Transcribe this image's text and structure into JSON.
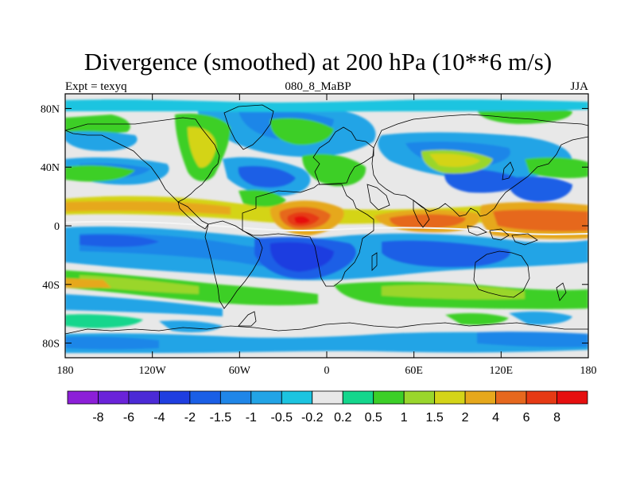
{
  "title": "Divergence (smoothed) at 200 hPa (10**6 m/s)",
  "subtitle_left": "Expt = texyq",
  "subtitle_center": "080_8_MaBP",
  "subtitle_right": "JJA",
  "map": {
    "lon_range": [
      -180,
      180
    ],
    "lat_range": [
      -90,
      90
    ],
    "x_ticks": [
      {
        "value": -180,
        "label": "180"
      },
      {
        "value": -120,
        "label": "120W"
      },
      {
        "value": -60,
        "label": "60W"
      },
      {
        "value": 0,
        "label": "0"
      },
      {
        "value": 60,
        "label": "60E"
      },
      {
        "value": 120,
        "label": "120E"
      },
      {
        "value": 180,
        "label": "180"
      }
    ],
    "y_ticks": [
      {
        "value": 80,
        "label": "80N"
      },
      {
        "value": 40,
        "label": "40N"
      },
      {
        "value": 0,
        "label": "0"
      },
      {
        "value": -40,
        "label": "40S"
      },
      {
        "value": -80,
        "label": "80S"
      }
    ],
    "background_color": "#e8e8e8"
  },
  "colorbar": {
    "labels": [
      "-8",
      "-6",
      "-4",
      "-2",
      "-1.5",
      "-1",
      "-0.5",
      "-0.2",
      "0.2",
      "0.5",
      "1",
      "1.5",
      "2",
      "4",
      "6",
      "8"
    ],
    "colors": [
      "#8c1fd8",
      "#6a23d9",
      "#4b2ad6",
      "#1f3ee0",
      "#1a5fe6",
      "#1f86e8",
      "#22a4e6",
      "#1cc4e0",
      "#e8e8e8",
      "#14d68c",
      "#3ccf28",
      "#9ad62c",
      "#d4d418",
      "#e6a81c",
      "#e6681e",
      "#e63a14",
      "#e60f0f"
    ]
  }
}
